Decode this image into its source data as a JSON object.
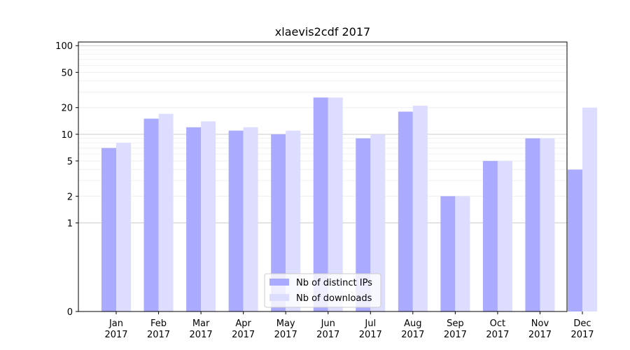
{
  "chart_data": {
    "type": "bar",
    "title": "xlaevis2cdf 2017",
    "categories": [
      "Jan\n2017",
      "Feb\n2017",
      "Mar\n2017",
      "Apr\n2017",
      "May\n2017",
      "Jun\n2017",
      "Jul\n2017",
      "Aug\n2017",
      "Sep\n2017",
      "Oct\n2017",
      "Nov\n2017",
      "Dec\n2017"
    ],
    "series": [
      {
        "name": "Nb of distinct IPs",
        "color": "#aaaaff",
        "values": [
          7,
          15,
          12,
          11,
          10,
          26,
          9,
          18,
          2,
          5,
          9,
          4
        ]
      },
      {
        "name": "Nb of downloads",
        "color": "#ddddff",
        "values": [
          8,
          17,
          14,
          12,
          11,
          26,
          10,
          21,
          2,
          5,
          9,
          20
        ]
      }
    ],
    "yscale": "symlog",
    "yticks": [
      0,
      1,
      2,
      5,
      10,
      20,
      50,
      100
    ],
    "ylim": [
      0,
      110
    ],
    "xlabel": "",
    "ylabel": "",
    "grid": true,
    "legend_position": "lower-center"
  }
}
